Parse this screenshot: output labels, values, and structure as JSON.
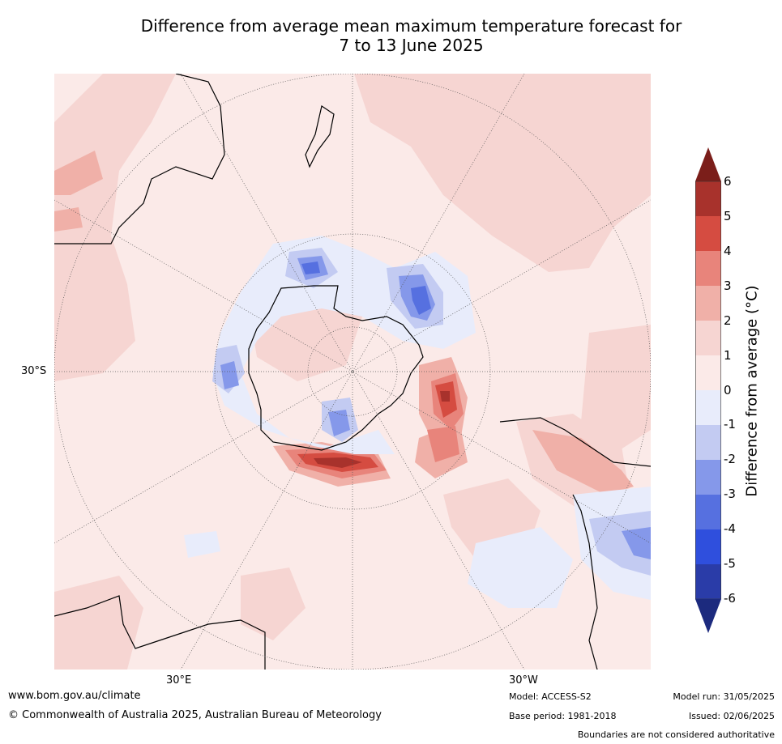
{
  "title_line1": "Difference from average mean maximum temperature forecast for",
  "title_line2": "7 to 13 June 2025",
  "lat_label": "30°S",
  "lon_labels": [
    "30°E",
    "30°W"
  ],
  "colorbar": {
    "title": "Difference from average (°C)",
    "ticks": [
      "6",
      "5",
      "4",
      "3",
      "2",
      "1",
      "0",
      "-1",
      "-2",
      "-3",
      "-4",
      "-5",
      "-6"
    ],
    "colors_top_to_bottom": [
      "#7b1e1a",
      "#a8322c",
      "#d54c41",
      "#e8847b",
      "#f0b0a8",
      "#f6d5d2",
      "#fbeae8",
      "#e8ecfb",
      "#c3cbf2",
      "#8598ea",
      "#5670e0",
      "#2f4fdd",
      "#2a3ca8",
      "#1c2a7e"
    ]
  },
  "footer": {
    "website": "www.bom.gov.au/climate",
    "copyright": "© Commonwealth of Australia 2025, Australian Bureau of Meteorology",
    "model": "Model: ACCESS-S2",
    "base_period": "Base period: 1981-2018",
    "model_run": "Model run: 31/05/2025",
    "issued": "Issued: 02/06/2025",
    "disclaimer": "Boundaries are not considered authoritative"
  }
}
